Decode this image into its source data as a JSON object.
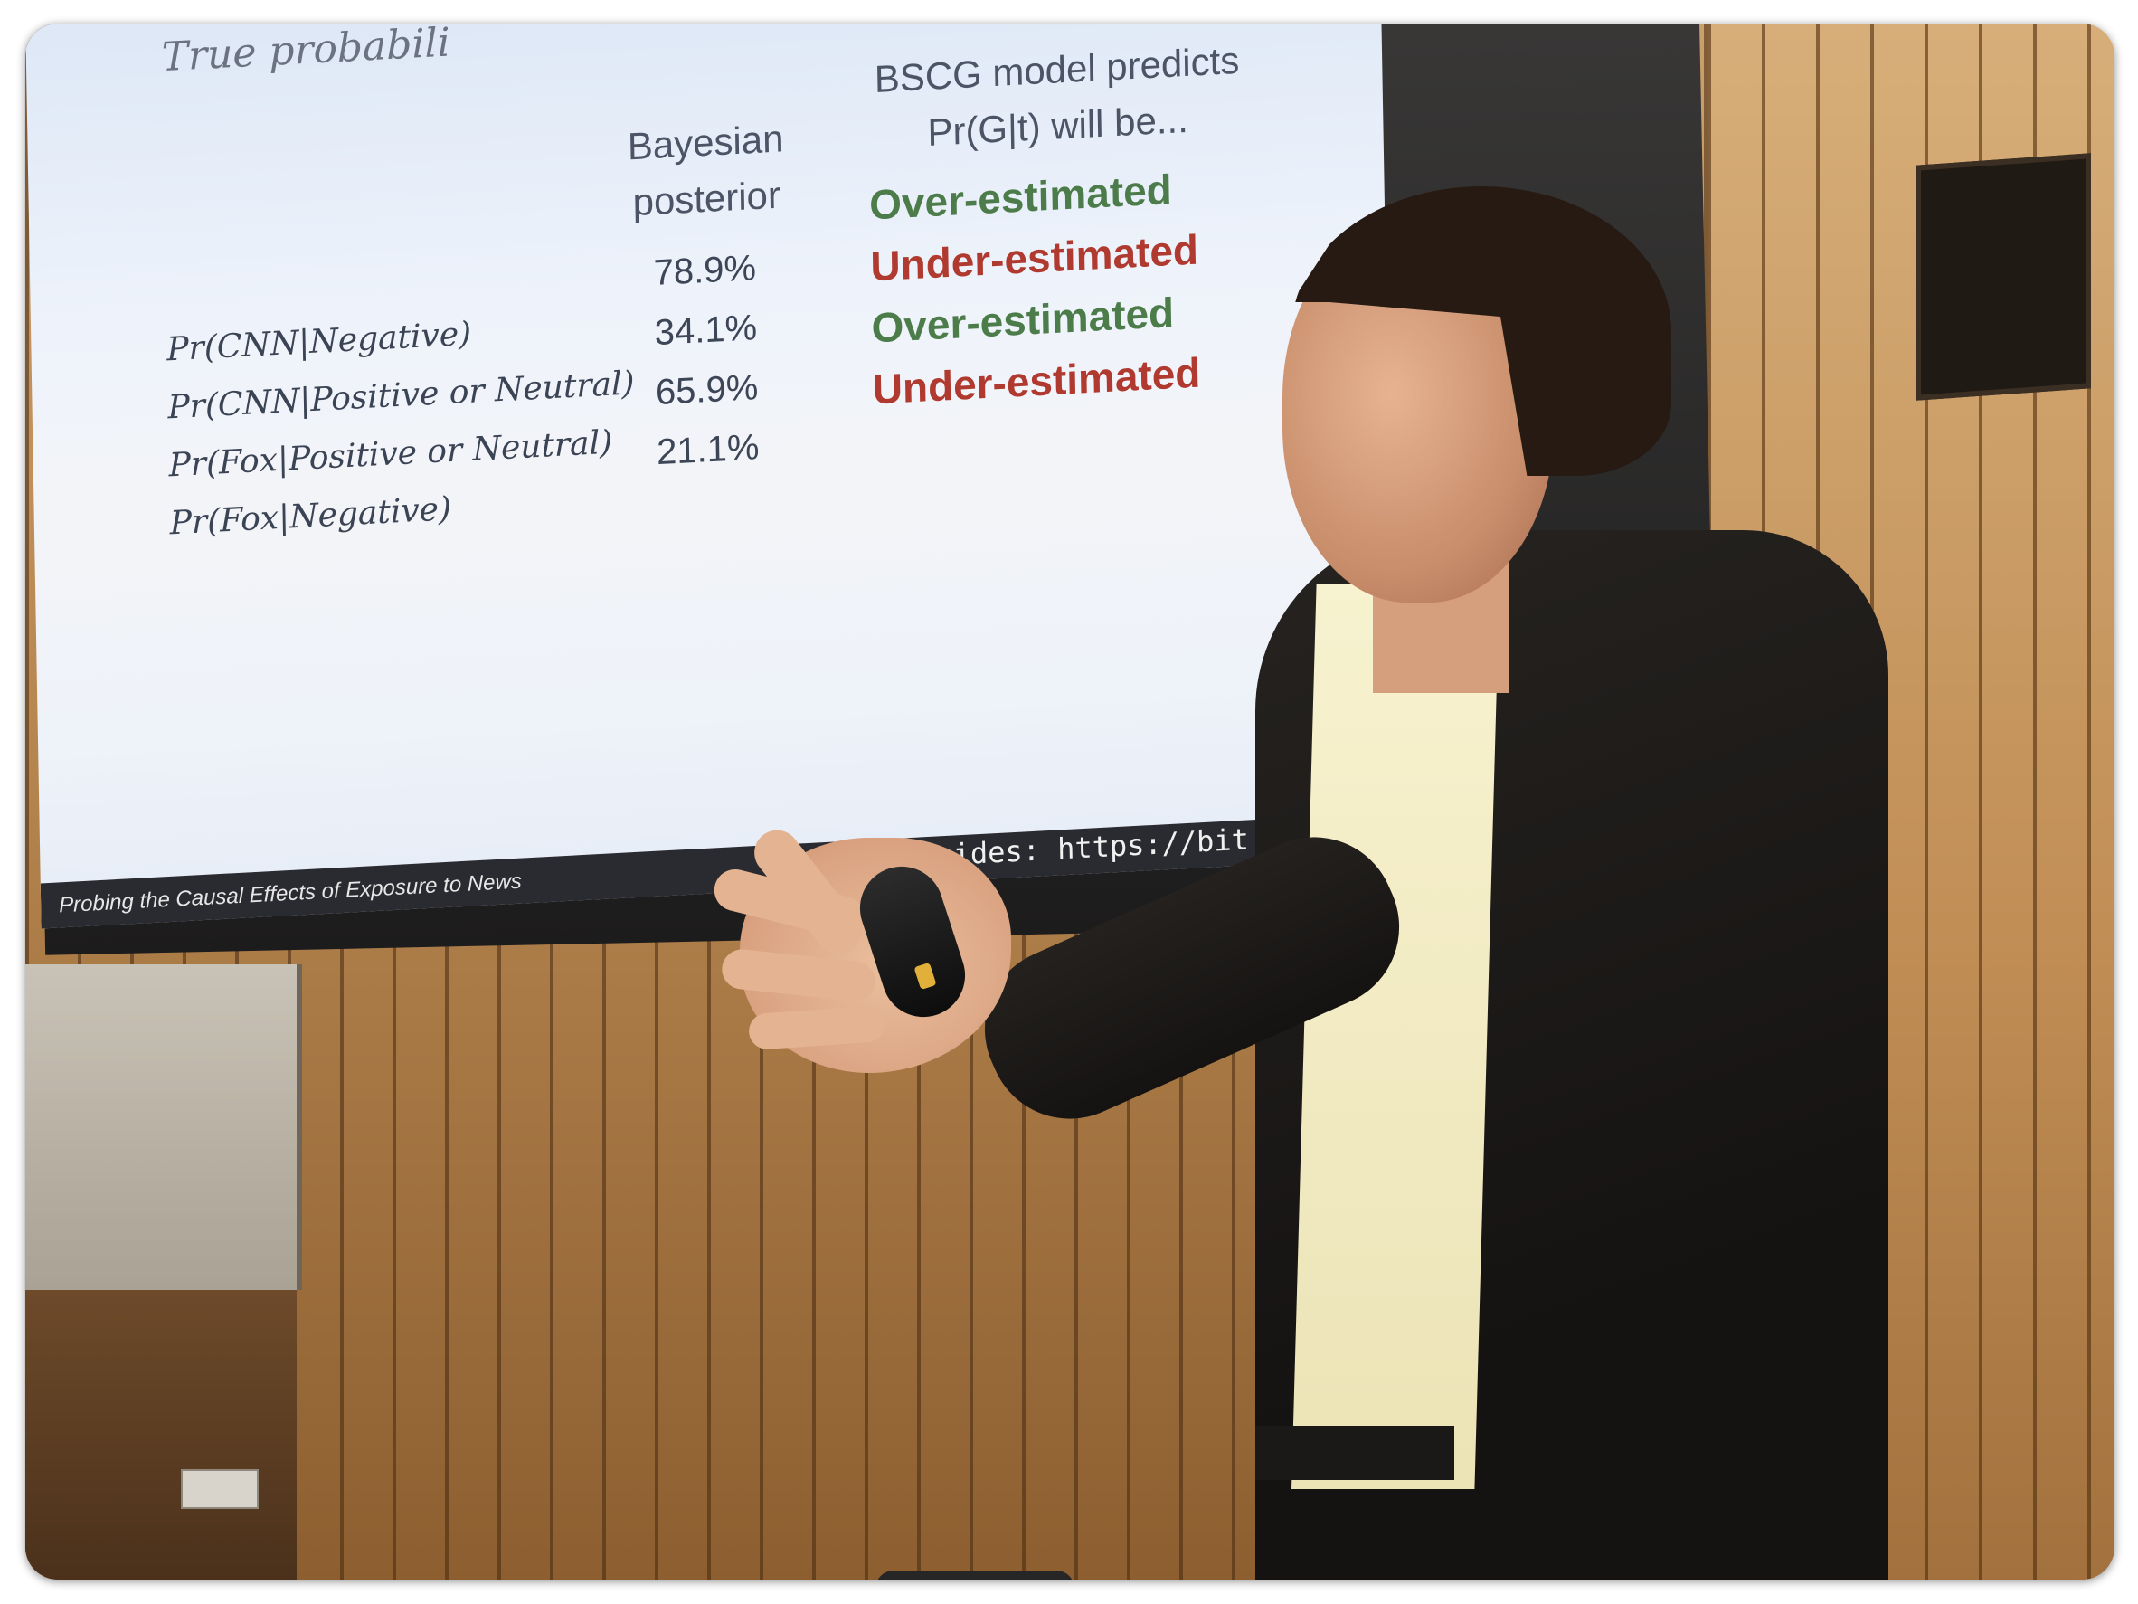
{
  "slide": {
    "title_fragment": "True probabili",
    "col_posterior": [
      "Bayesian",
      "posterior"
    ],
    "col_prediction": [
      "BSCG model predicts",
      "Pr(G|t) will be..."
    ],
    "rows": [
      {
        "label": "Pr(CNN|Negative)",
        "posterior": "78.9%",
        "prediction": "Over-estimated",
        "kind": "over"
      },
      {
        "label": "Pr(CNN|Positive or Neutral)",
        "posterior": "34.1%",
        "prediction": "Under-estimated",
        "kind": "under"
      },
      {
        "label": "Pr(Fox|Positive or Neutral)",
        "posterior": "65.9%",
        "prediction": "Over-estimated",
        "kind": "over"
      },
      {
        "label": "Pr(Fox|Negative)",
        "posterior": "21.1%",
        "prediction": "Under-estimated",
        "kind": "under"
      }
    ],
    "footer_title": "Probing the Causal Effects of Exposure to News",
    "footer_link": "ides: https://bit.ly/2U"
  },
  "colors": {
    "over": "#4d7c4b",
    "under": "#b03a2f"
  }
}
